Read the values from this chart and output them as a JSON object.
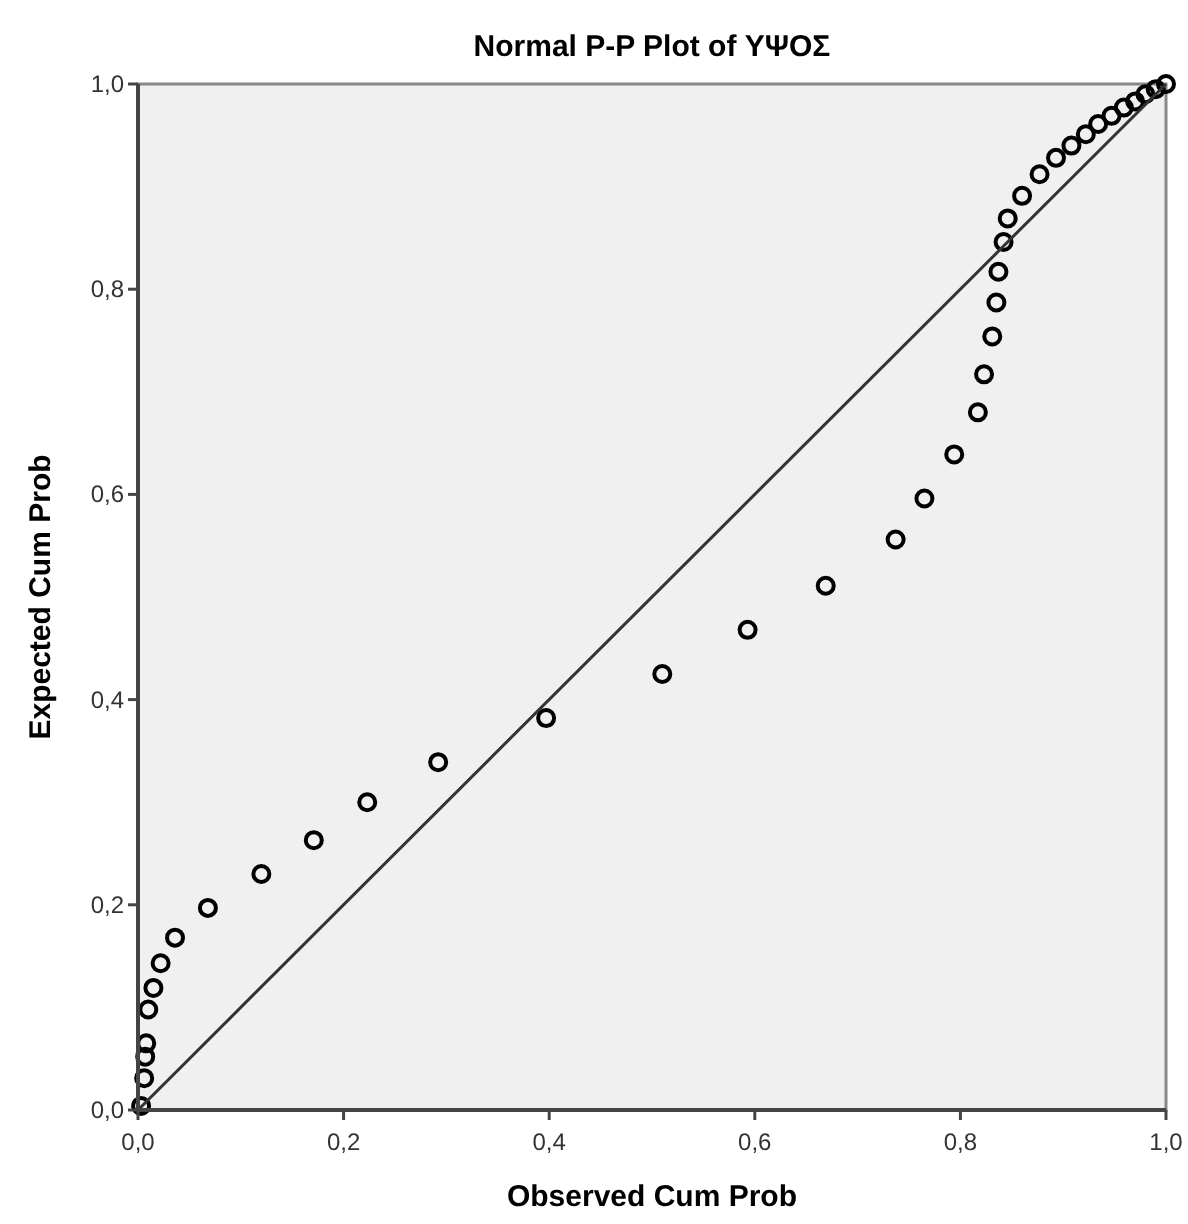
{
  "chart_data": {
    "type": "scatter",
    "title": "Normal P-P Plot of ΥΨΟΣ",
    "xlabel": "Observed Cum Prob",
    "ylabel": "Expected Cum Prob",
    "xlim": [
      0,
      1
    ],
    "ylim": [
      0,
      1
    ],
    "xticks": [
      {
        "value": 0,
        "label": "0,0"
      },
      {
        "value": 0.2,
        "label": "0,2"
      },
      {
        "value": 0.4,
        "label": "0,4"
      },
      {
        "value": 0.6,
        "label": "0,6"
      },
      {
        "value": 0.8,
        "label": "0,8"
      },
      {
        "value": 1,
        "label": "1,0"
      }
    ],
    "yticks": [
      {
        "value": 0,
        "label": "0,0"
      },
      {
        "value": 0.2,
        "label": "0,2"
      },
      {
        "value": 0.4,
        "label": "0,4"
      },
      {
        "value": 0.6,
        "label": "0,6"
      },
      {
        "value": 0.8,
        "label": "0,8"
      },
      {
        "value": 1,
        "label": "1,0"
      }
    ],
    "grid": false,
    "series": [
      {
        "color": "#000000",
        "marker": "circle",
        "x": [
          0.003,
          0.006,
          0.007,
          0.008,
          0.01,
          0.015,
          0.022,
          0.036,
          0.068,
          0.12,
          0.171,
          0.223,
          0.292,
          0.397,
          0.51,
          0.593,
          0.669,
          0.737,
          0.765,
          0.794,
          0.817,
          0.823,
          0.831,
          0.835,
          0.837,
          0.842,
          0.846,
          0.86,
          0.877,
          0.893,
          0.908,
          0.922,
          0.934,
          0.947,
          0.959,
          0.97,
          0.98,
          0.99,
          1.0
        ],
        "values": [
          0.004,
          0.031,
          0.052,
          0.065,
          0.098,
          0.119,
          0.143,
          0.168,
          0.197,
          0.23,
          0.263,
          0.3,
          0.339,
          0.382,
          0.425,
          0.468,
          0.511,
          0.556,
          0.596,
          0.639,
          0.68,
          0.717,
          0.754,
          0.787,
          0.817,
          0.846,
          0.869,
          0.891,
          0.912,
          0.928,
          0.94,
          0.951,
          0.961,
          0.969,
          0.977,
          0.983,
          0.99,
          0.995,
          1.0
        ]
      },
      {
        "type": "line",
        "color": "#333333",
        "x": [
          0,
          1
        ],
        "values": [
          0,
          1
        ],
        "marker": "none"
      }
    ]
  }
}
